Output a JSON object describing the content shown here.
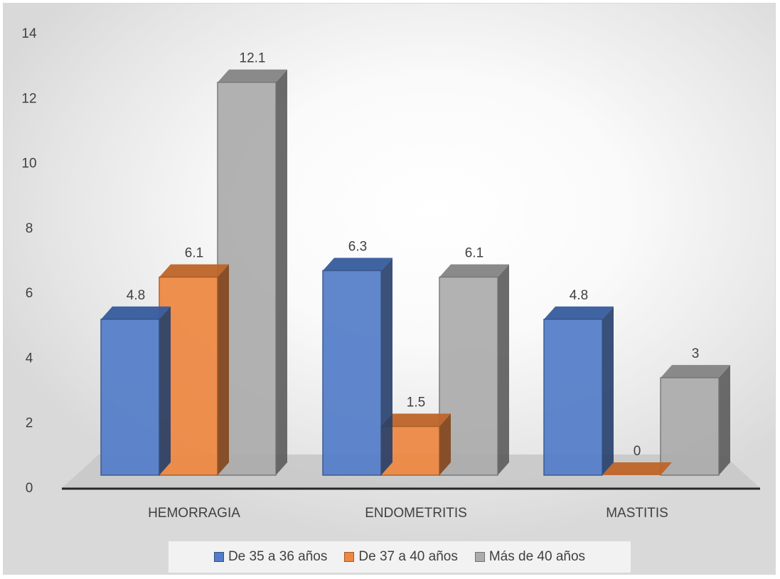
{
  "chart_data": {
    "type": "bar",
    "title": "",
    "xlabel": "",
    "ylabel": "",
    "categories": [
      "HEMORRAGIA",
      "ENDOMETRITIS",
      "MASTITIS"
    ],
    "series": [
      {
        "name": "De 35 a 36 años",
        "values": [
          4.8,
          6.3,
          4.8
        ],
        "labels": [
          "4.8",
          "6.3",
          "4.8"
        ],
        "color": "#4472c4"
      },
      {
        "name": "De 37 a 40 años",
        "values": [
          6.1,
          1.5,
          0
        ],
        "labels": [
          "6.1",
          "1.5",
          "0"
        ],
        "color": "#ed7d31"
      },
      {
        "name": "Más de 40 años",
        "values": [
          12.1,
          6.1,
          3
        ],
        "labels": [
          "12.1",
          "6.1",
          "3"
        ],
        "color": "#a5a5a5"
      }
    ],
    "ylim": [
      0,
      14
    ],
    "yticks": [
      "0",
      "2",
      "4",
      "6",
      "8",
      "10",
      "12",
      "14"
    ],
    "grid": false,
    "style": "3d-clustered-column",
    "legend_position": "bottom"
  }
}
